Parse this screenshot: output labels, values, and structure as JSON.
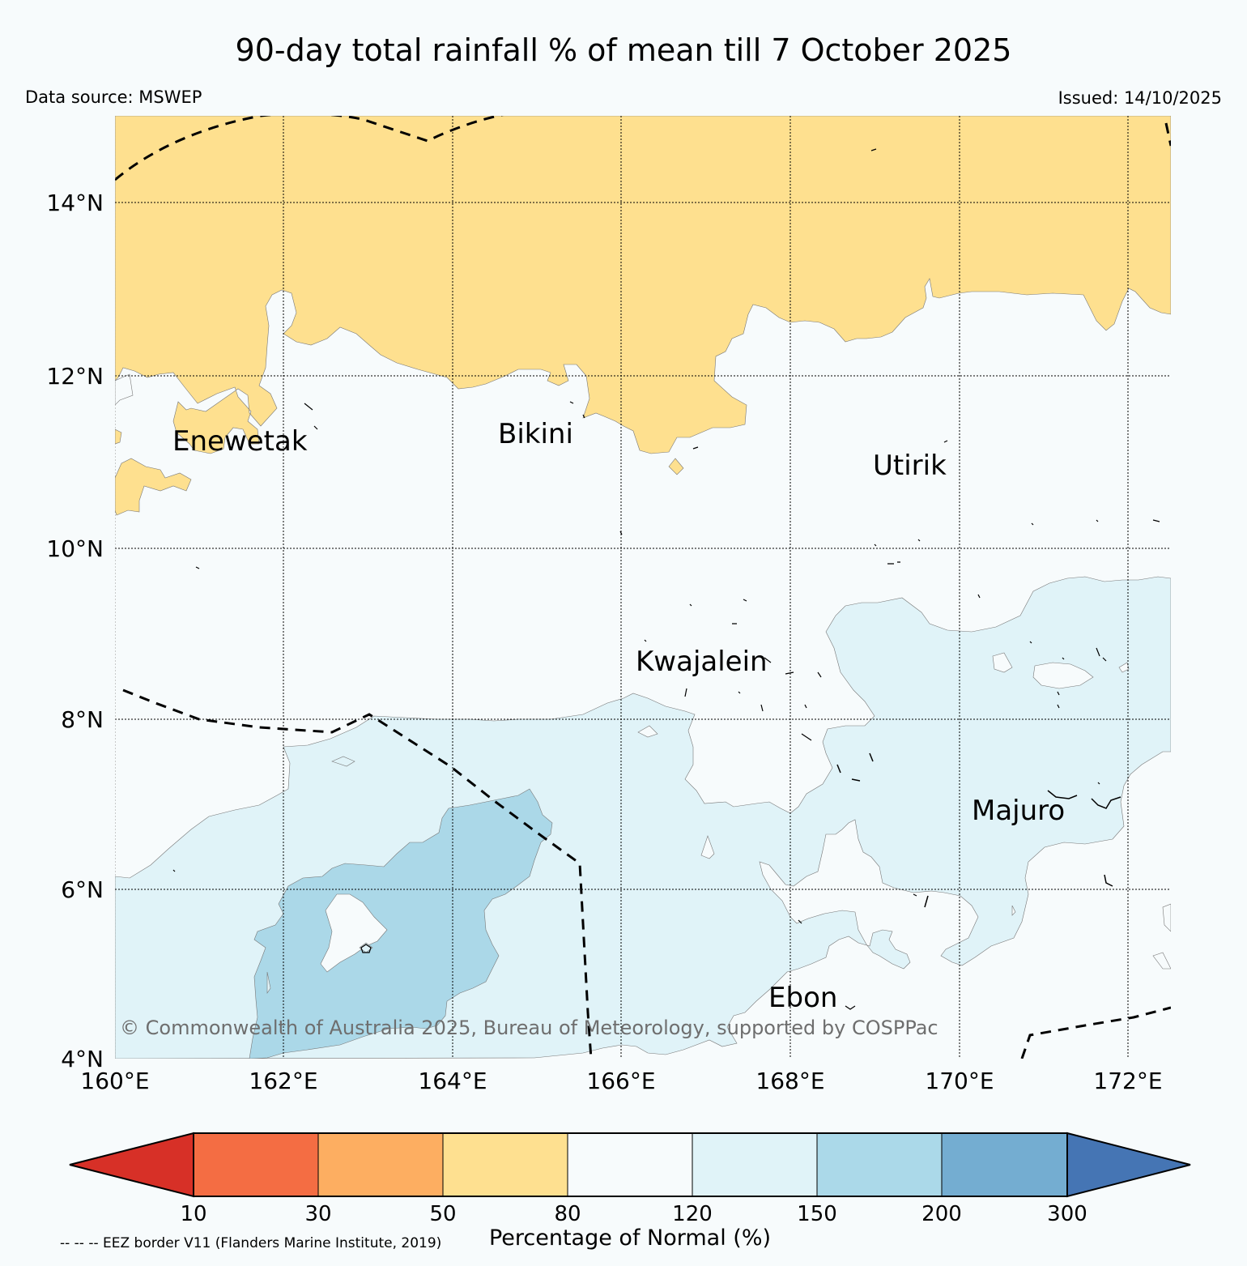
{
  "title": "90-day total rainfall % of mean till 7 October 2025",
  "data_source": "Data source: MSWEP",
  "issued": "Issued: 14/10/2025",
  "map": {
    "lat_labels": [
      "14°N",
      "12°N",
      "10°N",
      "8°N",
      "6°N",
      "4°N"
    ],
    "lon_labels": [
      "160°E",
      "162°E",
      "164°E",
      "166°E",
      "168°E",
      "170°E",
      "172°E"
    ],
    "places": [
      {
        "name": "Enewetak"
      },
      {
        "name": "Bikini"
      },
      {
        "name": "Utirik"
      },
      {
        "name": "Kwajalein"
      },
      {
        "name": "Majuro"
      },
      {
        "name": "Ebon"
      }
    ],
    "copyright": "© Commonwealth of Australia 2025, Bureau of Meteorology, supported by COSPPac",
    "regions": [
      {
        "category": "50-80",
        "color": "#fee08f",
        "area": "north of about 11-12.5°N"
      },
      {
        "category": "80-120",
        "color": "#f7fbfc",
        "area": "central band"
      },
      {
        "category": "120-150",
        "color": "#e0f3f8",
        "area": "south and east"
      },
      {
        "category": "150-200",
        "color": "#abd8e8",
        "area": "around 162-165°E, 4-7°N"
      }
    ]
  },
  "colorbar": {
    "title": "Percentage of Normal (%)",
    "ticks": [
      "10",
      "30",
      "50",
      "80",
      "120",
      "150",
      "200",
      "300"
    ],
    "colors": {
      "lt10": "#d73027",
      "10-30": "#f46d43",
      "30-50": "#fdae61",
      "50-80": "#fee090",
      "80-120": "#f7fbfc",
      "120-150": "#e0f3f8",
      "150-200": "#abd9e9",
      "200-300": "#74add1",
      "gt300": "#4575b4"
    }
  },
  "eez_note": "-- -- -- EEZ border V11 (Flanders Marine Institute, 2019)"
}
